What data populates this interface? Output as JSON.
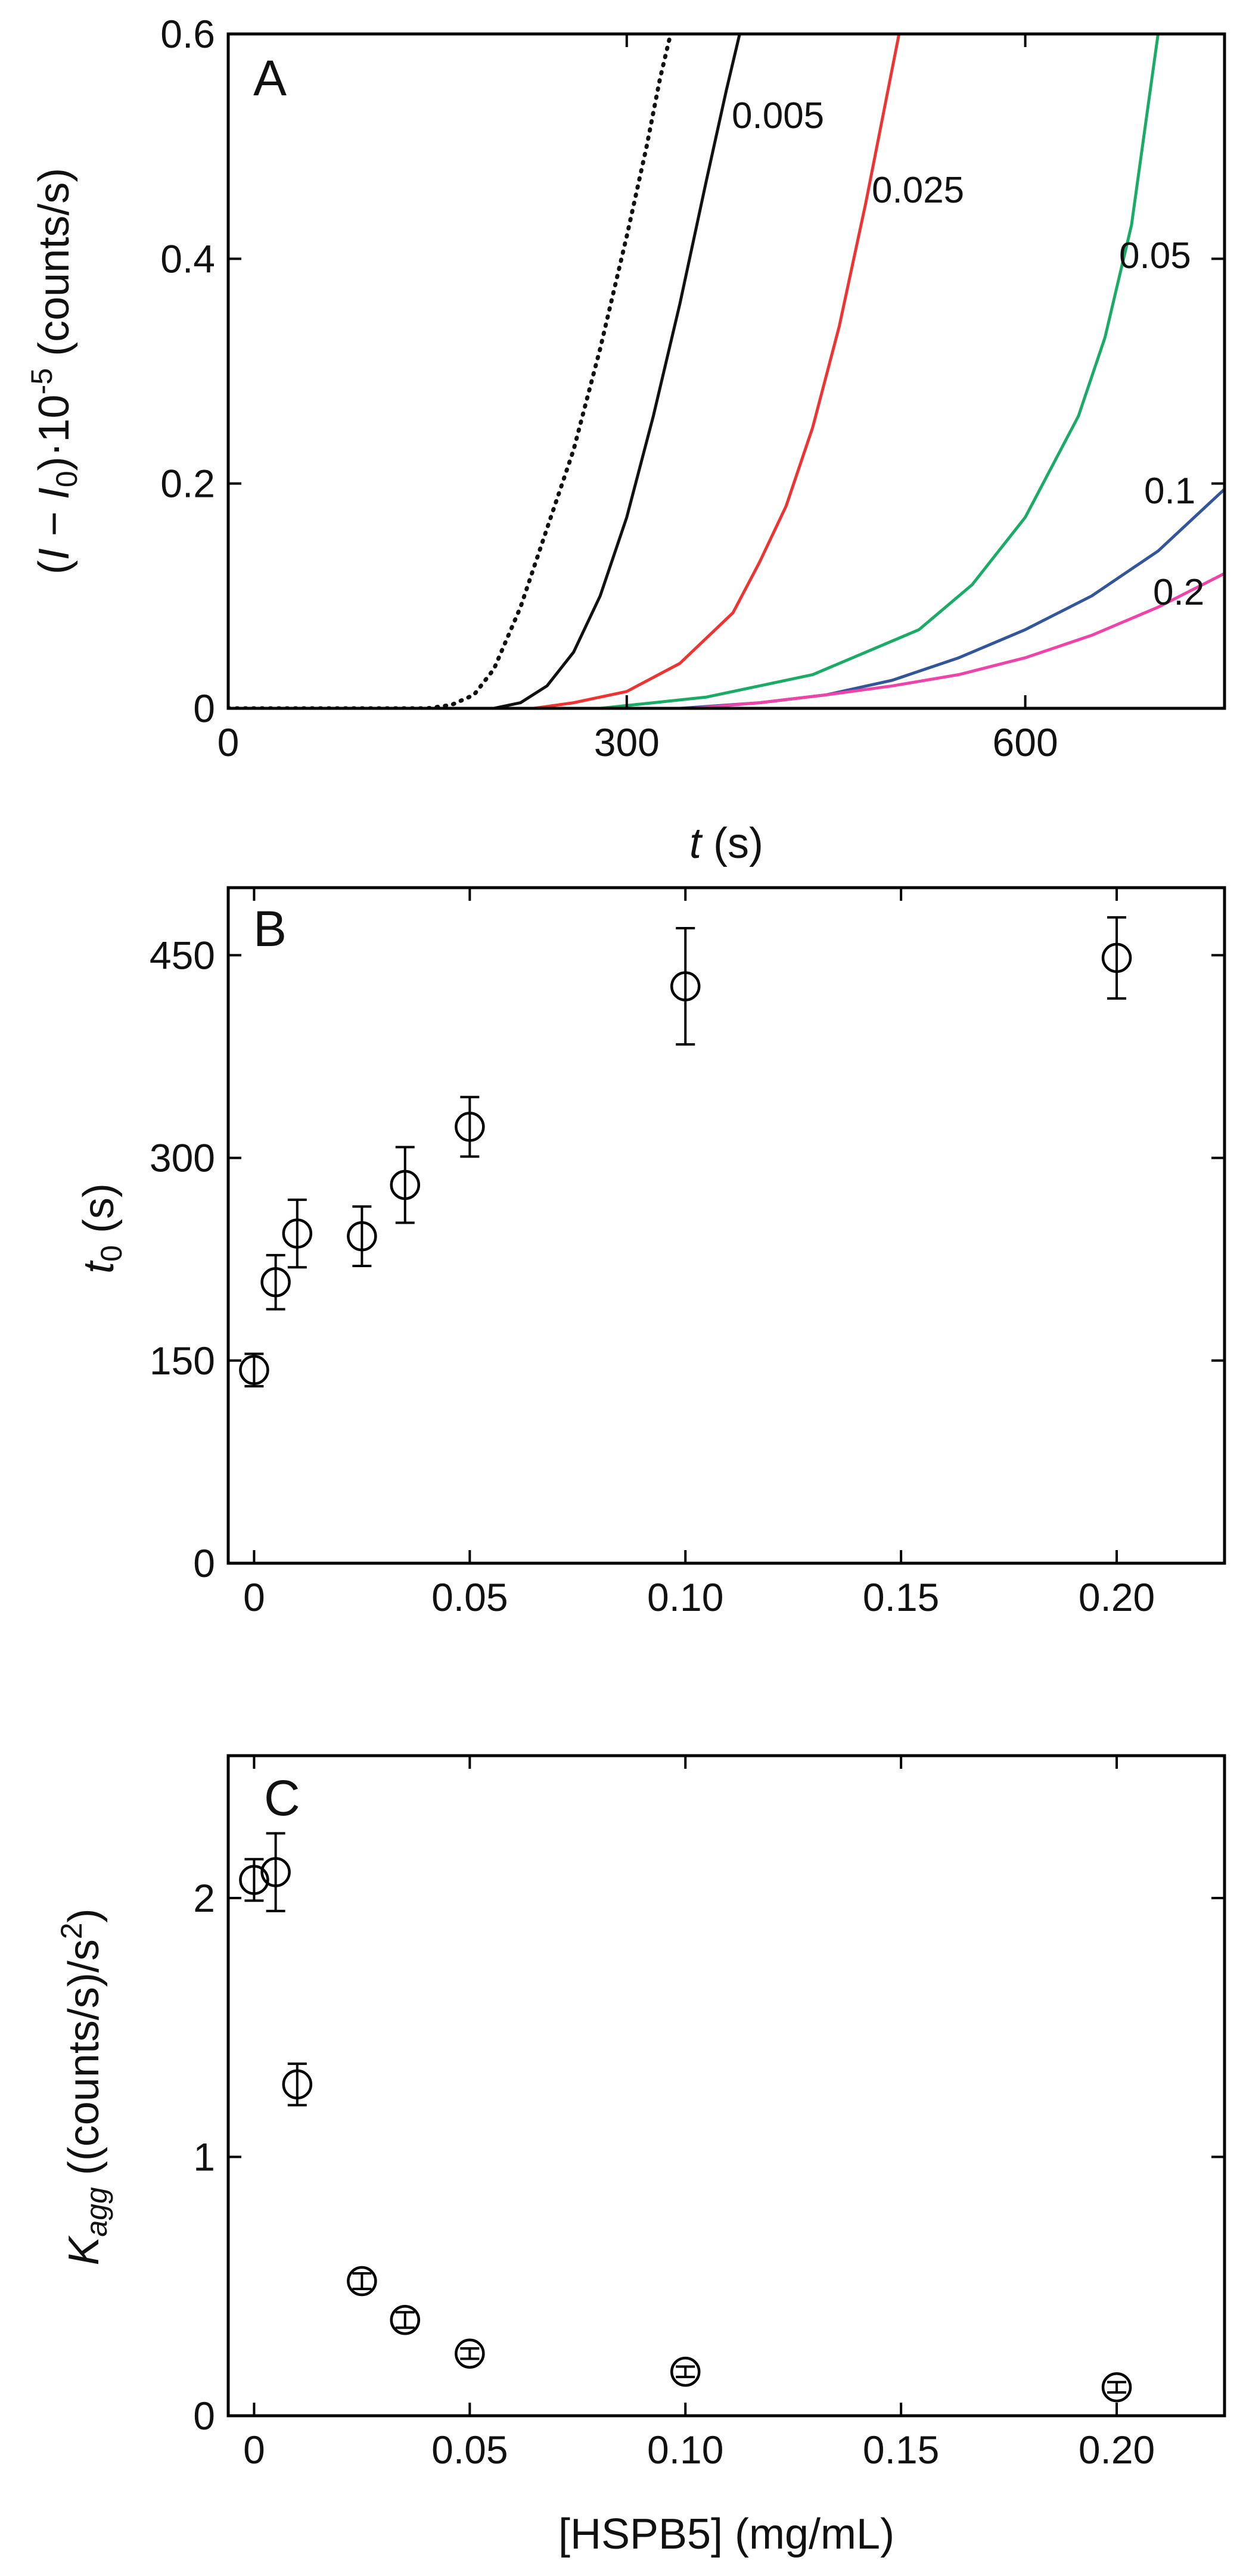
{
  "chart_data": [
    {
      "panel": "A",
      "type": "line",
      "xlim": [
        0,
        750
      ],
      "ylim": [
        0,
        0.6
      ],
      "x_ticks": [
        0,
        300,
        600
      ],
      "y_ticks": [
        0,
        0.2,
        0.4,
        0.6
      ],
      "x_tick_labels": [
        "0",
        "300",
        "600"
      ],
      "y_tick_labels": [
        "0",
        "0.2",
        "0.4",
        "0.6"
      ],
      "xlabel": "t (s)",
      "ylabel": "(I − I0)·10−5 (counts/s)",
      "series": [
        {
          "name": "",
          "color": "#111111",
          "style": "dotted",
          "x": [
            0,
            150,
            168,
            185,
            200,
            220,
            240,
            260,
            280,
            300,
            315,
            325,
            333
          ],
          "y": [
            0,
            0,
            0.003,
            0.012,
            0.035,
            0.09,
            0.16,
            0.23,
            0.32,
            0.42,
            0.5,
            0.56,
            0.6
          ]
        },
        {
          "name": "0.005",
          "color": "#111111",
          "style": "solid",
          "x": [
            0,
            200,
            220,
            240,
            260,
            280,
            300,
            320,
            340,
            360,
            375,
            385
          ],
          "y": [
            0,
            0,
            0.005,
            0.02,
            0.05,
            0.1,
            0.17,
            0.26,
            0.36,
            0.47,
            0.55,
            0.6
          ]
        },
        {
          "name": "0.025",
          "color": "#ee3333",
          "style": "solid",
          "x": [
            0,
            230,
            260,
            300,
            340,
            380,
            400,
            420,
            440,
            460,
            480,
            495,
            505
          ],
          "y": [
            0,
            0,
            0.005,
            0.015,
            0.04,
            0.085,
            0.13,
            0.18,
            0.25,
            0.34,
            0.45,
            0.54,
            0.6
          ]
        },
        {
          "name": "0.05",
          "color": "#1aab66",
          "style": "solid",
          "x": [
            0,
            280,
            320,
            360,
            400,
            440,
            480,
            520,
            560,
            600,
            640,
            660,
            680,
            700
          ],
          "y": [
            0,
            0,
            0.005,
            0.01,
            0.02,
            0.03,
            0.05,
            0.07,
            0.11,
            0.17,
            0.26,
            0.33,
            0.43,
            0.6
          ]
        },
        {
          "name": "0.1",
          "color": "#335599",
          "style": "solid",
          "x": [
            0,
            340,
            400,
            450,
            500,
            550,
            600,
            650,
            700,
            750
          ],
          "y": [
            0,
            0,
            0.005,
            0.012,
            0.025,
            0.045,
            0.07,
            0.1,
            0.14,
            0.195
          ]
        },
        {
          "name": "0.2",
          "color": "#ee44aa",
          "style": "solid",
          "x": [
            0,
            350,
            400,
            450,
            500,
            550,
            600,
            650,
            700,
            750
          ],
          "y": [
            0,
            0,
            0.005,
            0.012,
            0.02,
            0.03,
            0.045,
            0.065,
            0.09,
            0.12
          ]
        }
      ]
    },
    {
      "panel": "B",
      "type": "scatter",
      "xlim": [
        -0.006,
        0.225
      ],
      "ylim": [
        0,
        500
      ],
      "x_ticks": [
        0,
        0.05,
        0.1,
        0.15,
        0.2
      ],
      "y_ticks": [
        0,
        150,
        300,
        450
      ],
      "x_tick_labels": [
        "0",
        "0.05",
        "0.10",
        "0.15",
        "0.20"
      ],
      "y_tick_labels": [
        "0",
        "150",
        "300",
        "450"
      ],
      "xlabel": "",
      "ylabel": "t0 (s)",
      "points": [
        {
          "x": 0,
          "y": 143,
          "err": 12
        },
        {
          "x": 0.005,
          "y": 208,
          "err": 20
        },
        {
          "x": 0.01,
          "y": 244,
          "err": 25
        },
        {
          "x": 0.025,
          "y": 242,
          "err": 22
        },
        {
          "x": 0.035,
          "y": 280,
          "err": 28
        },
        {
          "x": 0.05,
          "y": 323,
          "err": 22
        },
        {
          "x": 0.1,
          "y": 427,
          "err": 43
        },
        {
          "x": 0.2,
          "y": 448,
          "err": 30
        }
      ]
    },
    {
      "panel": "C",
      "type": "scatter",
      "xlim": [
        -0.006,
        0.225
      ],
      "ylim": [
        0,
        2.55
      ],
      "x_ticks": [
        0,
        0.05,
        0.1,
        0.15,
        0.2
      ],
      "y_ticks": [
        0,
        1,
        2
      ],
      "x_tick_labels": [
        "0",
        "0.05",
        "0.10",
        "0.15",
        "0.20"
      ],
      "y_tick_labels": [
        "0",
        "1",
        "2"
      ],
      "xlabel": "[HSPB5] (mg/mL)",
      "ylabel": "Kagg ((counts/s)/s2)",
      "points": [
        {
          "x": 0,
          "y": 2.07,
          "err": 0.08
        },
        {
          "x": 0.005,
          "y": 2.1,
          "err": 0.15
        },
        {
          "x": 0.01,
          "y": 1.28,
          "err": 0.08
        },
        {
          "x": 0.025,
          "y": 0.52,
          "err": 0.03
        },
        {
          "x": 0.035,
          "y": 0.37,
          "err": 0.03
        },
        {
          "x": 0.05,
          "y": 0.24,
          "err": 0.02
        },
        {
          "x": 0.1,
          "y": 0.17,
          "err": 0.02
        },
        {
          "x": 0.2,
          "y": 0.11,
          "err": 0.02
        }
      ]
    }
  ],
  "text": {
    "panel_a": "A",
    "panel_b": "B",
    "panel_c": "C",
    "a_y_open": "(",
    "a_y_I": "I",
    "a_y_minus": " − ",
    "a_y_I0": "I",
    "a_y_0": "0",
    "a_y_mult": ")·10",
    "a_y_exp": "-5",
    "a_y_units": " (counts/s)",
    "a_x_t": "t",
    "a_x_units": " (s)",
    "b_y_t": "t",
    "b_y_0": "0",
    "b_y_units": " (s)",
    "c_y_K": "K",
    "c_y_agg": "agg",
    "c_y_units": " ((counts/s)/s",
    "c_y_exp": "2",
    "c_y_close": ")",
    "c_x_label": "[HSPB5] (mg/mL)"
  }
}
